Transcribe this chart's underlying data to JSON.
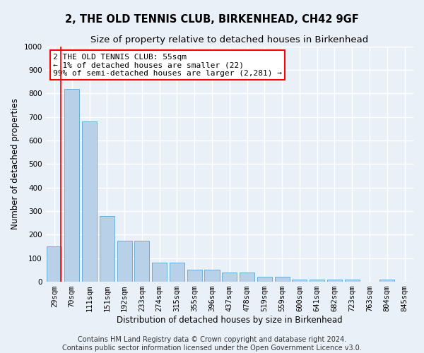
{
  "title": "2, THE OLD TENNIS CLUB, BIRKENHEAD, CH42 9GF",
  "subtitle": "Size of property relative to detached houses in Birkenhead",
  "xlabel": "Distribution of detached houses by size in Birkenhead",
  "ylabel": "Number of detached properties",
  "categories": [
    "29sqm",
    "70sqm",
    "111sqm",
    "151sqm",
    "192sqm",
    "233sqm",
    "274sqm",
    "315sqm",
    "355sqm",
    "396sqm",
    "437sqm",
    "478sqm",
    "519sqm",
    "559sqm",
    "600sqm",
    "641sqm",
    "682sqm",
    "723sqm",
    "763sqm",
    "804sqm",
    "845sqm"
  ],
  "values": [
    150,
    820,
    680,
    280,
    175,
    175,
    80,
    80,
    50,
    50,
    40,
    40,
    20,
    20,
    10,
    10,
    10,
    10,
    0,
    10,
    0
  ],
  "bar_color": "#b8d0e8",
  "bar_edge_color": "#6baed6",
  "annotation_box_text": "2 THE OLD TENNIS CLUB: 55sqm\n← 1% of detached houses are smaller (22)\n99% of semi-detached houses are larger (2,281) →",
  "ylim": [
    0,
    1000
  ],
  "yticks": [
    0,
    100,
    200,
    300,
    400,
    500,
    600,
    700,
    800,
    900,
    1000
  ],
  "footer_line1": "Contains HM Land Registry data © Crown copyright and database right 2024.",
  "footer_line2": "Contains public sector information licensed under the Open Government Licence v3.0.",
  "bg_color": "#eaf0f8",
  "grid_color": "#ffffff",
  "title_fontsize": 10.5,
  "subtitle_fontsize": 9.5,
  "axis_label_fontsize": 8.5,
  "tick_fontsize": 7.5,
  "footer_fontsize": 7.0,
  "vline_x": 0.38
}
